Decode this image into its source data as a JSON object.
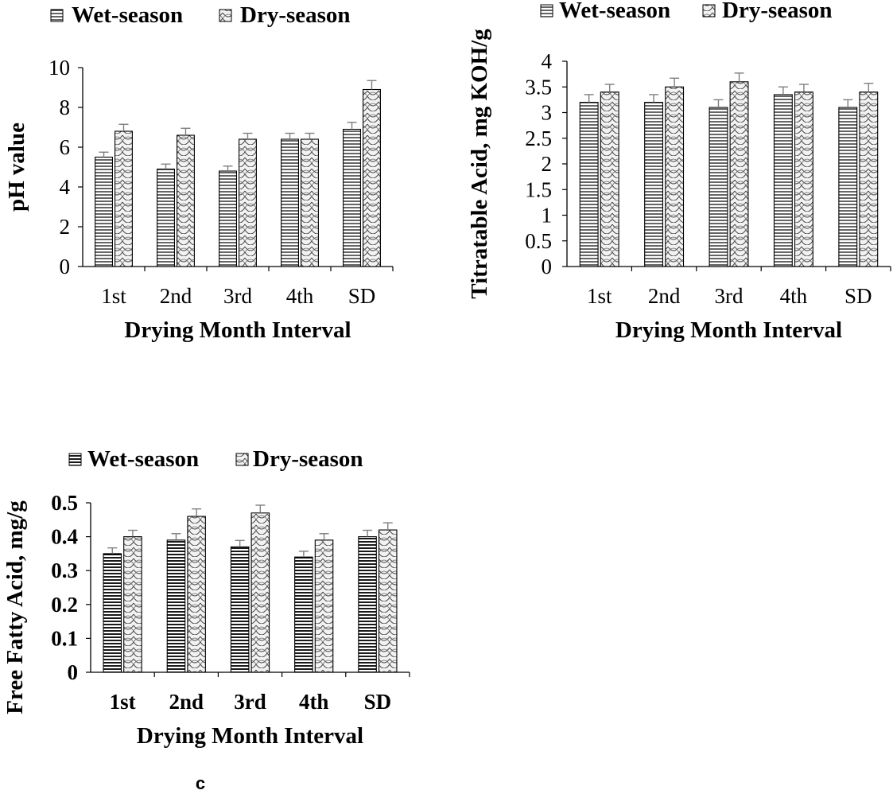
{
  "chart_data": [
    {
      "type": "bar",
      "categories": [
        "1st",
        "2nd",
        "3rd",
        "4th",
        "SD"
      ],
      "series": [
        {
          "name": "Wet-season",
          "values": [
            5.5,
            4.9,
            4.8,
            6.4,
            6.9
          ],
          "errors": [
            0.25,
            0.25,
            0.25,
            0.3,
            0.35
          ],
          "pattern": "hlines"
        },
        {
          "name": "Dry-season",
          "values": [
            6.8,
            6.6,
            6.4,
            6.4,
            8.9
          ],
          "errors": [
            0.35,
            0.35,
            0.3,
            0.3,
            0.45
          ],
          "pattern": "wave"
        }
      ],
      "ylabel": "pH value",
      "xlabel": "Drying Month Interval",
      "ylim": [
        0,
        10
      ],
      "yticks": [
        "0",
        "2",
        "4",
        "6",
        "8",
        "10"
      ],
      "tick_values": [
        0,
        2,
        4,
        6,
        8,
        10
      ],
      "bold_ticks": false,
      "legend_position": "top"
    },
    {
      "type": "bar",
      "categories": [
        "1st",
        "2nd",
        "3rd",
        "4th",
        "SD"
      ],
      "series": [
        {
          "name": "Wet-season",
          "values": [
            3.2,
            3.2,
            3.1,
            3.35,
            3.1
          ],
          "errors": [
            0.15,
            0.15,
            0.15,
            0.15,
            0.15
          ],
          "pattern": "hlines"
        },
        {
          "name": "Dry-season",
          "values": [
            3.4,
            3.5,
            3.6,
            3.4,
            3.4
          ],
          "errors": [
            0.15,
            0.17,
            0.17,
            0.15,
            0.17
          ],
          "pattern": "wave"
        }
      ],
      "ylabel": "Titratable Acid, mg KOH/g",
      "xlabel": "Drying Month Interval",
      "ylim": [
        0,
        4
      ],
      "yticks": [
        "0",
        "0.5",
        "1",
        "1.5",
        "2",
        "2.5",
        "3",
        "3.5",
        "4"
      ],
      "tick_values": [
        0,
        0.5,
        1,
        1.5,
        2,
        2.5,
        3,
        3.5,
        4
      ],
      "bold_ticks": false,
      "legend_position": "top"
    },
    {
      "type": "bar",
      "categories": [
        "1st",
        "2nd",
        "3rd",
        "4th",
        "SD"
      ],
      "series": [
        {
          "name": "Wet-season",
          "values": [
            0.35,
            0.39,
            0.37,
            0.34,
            0.4
          ],
          "errors": [
            0.017,
            0.019,
            0.019,
            0.017,
            0.019
          ],
          "pattern": "hlines"
        },
        {
          "name": "Dry-season",
          "values": [
            0.4,
            0.46,
            0.47,
            0.39,
            0.42
          ],
          "errors": [
            0.019,
            0.022,
            0.023,
            0.019,
            0.021
          ],
          "pattern": "wave"
        }
      ],
      "ylabel": "Free Fatty Acid, mg/g",
      "xlabel": "Drying Month Interval",
      "ylim": [
        0,
        0.5
      ],
      "yticks": [
        "0",
        "0.1",
        "0.2",
        "0.3",
        "0.4",
        "0.5"
      ],
      "tick_values": [
        0,
        0.1,
        0.2,
        0.3,
        0.4,
        0.5
      ],
      "bold_ticks": true,
      "legend_position": "top"
    }
  ],
  "caption": "c",
  "colors": {
    "bar_fill": "#ffffff",
    "bar_stroke": "#000000",
    "wet_pattern": "#000000",
    "dry_pattern": "#555555",
    "error_bar": "#7f7f7f"
  }
}
